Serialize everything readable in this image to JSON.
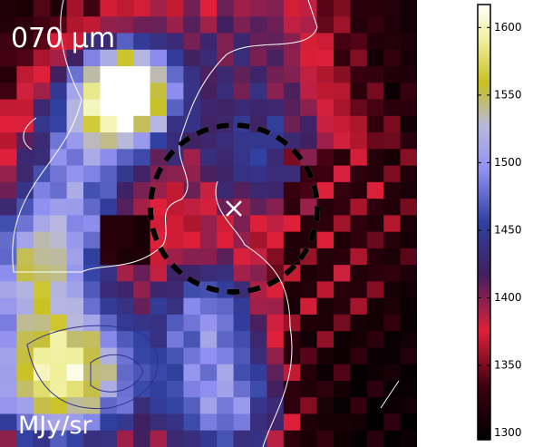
{
  "chart_data": {
    "type": "image",
    "title": "070 μm",
    "colorbar_label": "MJy/sr",
    "clim": [
      1295,
      1617
    ],
    "cticks": [
      1300,
      1350,
      1400,
      1450,
      1500,
      1550,
      1600
    ]
  }
}
